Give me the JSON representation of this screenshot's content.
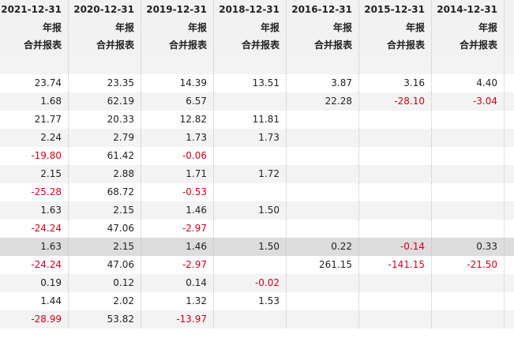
{
  "columns": [
    {
      "date": "2021-12-31",
      "type": "年报",
      "scope": "合并报表"
    },
    {
      "date": "2020-12-31",
      "type": "年报",
      "scope": "合并报表"
    },
    {
      "date": "2019-12-31",
      "type": "年报",
      "scope": "合并报表"
    },
    {
      "date": "2018-12-31",
      "type": "年报",
      "scope": "合并报表"
    },
    {
      "date": "2016-12-31",
      "type": "年报",
      "scope": "合并报表"
    },
    {
      "date": "2015-12-31",
      "type": "年报",
      "scope": "合并报表"
    },
    {
      "date": "2014-12-31",
      "type": "年报",
      "scope": "合并报表"
    }
  ],
  "rows": [
    [
      "",
      "",
      "",
      "",
      "",
      "",
      ""
    ],
    [
      "23.74",
      "23.35",
      "14.39",
      "13.51",
      "3.87",
      "3.16",
      "4.40"
    ],
    [
      "1.68",
      "62.19",
      "6.57",
      "",
      "22.28",
      "-28.10",
      "-3.04"
    ],
    [
      "21.77",
      "20.33",
      "12.82",
      "11.81",
      "",
      "",
      ""
    ],
    [
      "2.24",
      "2.79",
      "1.73",
      "1.73",
      "",
      "",
      ""
    ],
    [
      "-19.80",
      "61.42",
      "-0.06",
      "",
      "",
      "",
      ""
    ],
    [
      "2.15",
      "2.88",
      "1.71",
      "1.72",
      "",
      "",
      ""
    ],
    [
      "-25.28",
      "68.72",
      "-0.53",
      "",
      "",
      "",
      ""
    ],
    [
      "1.63",
      "2.15",
      "1.46",
      "1.50",
      "",
      "",
      ""
    ],
    [
      "-24.24",
      "47.06",
      "-2.97",
      "",
      "",
      "",
      ""
    ],
    [
      "1.63",
      "2.15",
      "1.46",
      "1.50",
      "0.22",
      "-0.14",
      "0.33"
    ],
    [
      "-24.24",
      "47.06",
      "-2.97",
      "",
      "261.15",
      "-141.15",
      "-21.50"
    ],
    [
      "0.19",
      "0.12",
      "0.14",
      "-0.02",
      "",
      "",
      ""
    ],
    [
      "1.44",
      "2.02",
      "1.32",
      "1.53",
      "",
      "",
      ""
    ],
    [
      "-28.99",
      "53.82",
      "-13.97",
      "",
      "",
      "",
      ""
    ]
  ],
  "highlight_row_index": 10,
  "colors": {
    "negative": "#d0021b",
    "header_bg": "#f2f2f2",
    "stripe_bg": "#f3f3f3",
    "highlight_bg": "#dcdcdc"
  }
}
